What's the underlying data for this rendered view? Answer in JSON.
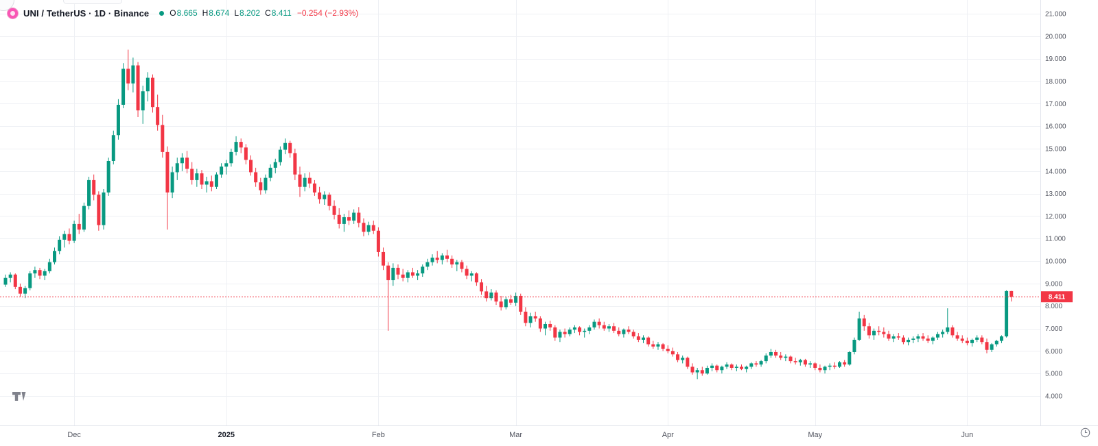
{
  "header": {
    "symbol_title": "UNI / TetherUS · 1D · Binance",
    "ohlc": {
      "open_letter": "O",
      "open": "8.665",
      "high_letter": "H",
      "high": "8.674",
      "low_letter": "L",
      "low": "8.202",
      "close_letter": "C",
      "close": "8.411",
      "change": "−0.254 (−2.93%)"
    }
  },
  "colors": {
    "up": "#089981",
    "down": "#f23645",
    "grid": "#eef0f4",
    "axis_border": "#e0e3eb",
    "axis_text": "#50535e",
    "text": "#131722",
    "muted": "#787b86",
    "logo_pink": "#f956b5",
    "badge_text": "#ffffff"
  },
  "chart_data": {
    "type": "candlestick",
    "title": "UNI / TetherUS · 1D · Binance",
    "exchange": "Binance",
    "interval": "1D",
    "last_price": 8.411,
    "last_candle": {
      "open": 8.665,
      "high": 8.674,
      "low": 8.202,
      "close": 8.411,
      "change": -0.254,
      "change_pct": -2.93
    },
    "price_axis": {
      "min": 4,
      "max": 21,
      "step": 1,
      "labels": [
        "21.000",
        "20.000",
        "19.000",
        "18.000",
        "17.000",
        "16.000",
        "15.000",
        "14.000",
        "13.000",
        "12.000",
        "11.000",
        "10.000",
        "9.000",
        "8.000",
        "7.000",
        "6.000",
        "5.000",
        "4.000"
      ],
      "last_price_label": "8.411"
    },
    "time_axis": {
      "ticks": [
        {
          "label": "Dec",
          "index": 14
        },
        {
          "label": "2025",
          "index": 45,
          "bold": true
        },
        {
          "label": "Feb",
          "index": 76
        },
        {
          "label": "Mar",
          "index": 104
        },
        {
          "label": "Apr",
          "index": 135
        },
        {
          "label": "May",
          "index": 165
        },
        {
          "label": "Jun",
          "index": 196
        }
      ]
    },
    "candles": [
      [
        8.95,
        9.4,
        8.85,
        9.25
      ],
      [
        9.25,
        9.5,
        9.05,
        9.4
      ],
      [
        9.4,
        9.45,
        8.75,
        8.85
      ],
      [
        8.85,
        9.0,
        8.4,
        8.55
      ],
      [
        8.55,
        8.9,
        8.35,
        8.8
      ],
      [
        8.8,
        9.55,
        8.7,
        9.45
      ],
      [
        9.45,
        9.75,
        9.25,
        9.6
      ],
      [
        9.6,
        9.7,
        9.2,
        9.35
      ],
      [
        9.35,
        9.65,
        9.15,
        9.55
      ],
      [
        9.55,
        10.1,
        9.45,
        9.95
      ],
      [
        9.95,
        10.6,
        9.85,
        10.45
      ],
      [
        10.45,
        11.1,
        10.3,
        10.95
      ],
      [
        10.95,
        11.35,
        10.6,
        11.2
      ],
      [
        11.2,
        11.45,
        10.75,
        10.9
      ],
      [
        10.9,
        11.8,
        10.8,
        11.65
      ],
      [
        11.65,
        12.1,
        11.2,
        11.4
      ],
      [
        11.4,
        12.6,
        11.3,
        12.45
      ],
      [
        12.45,
        13.75,
        12.3,
        13.6
      ],
      [
        13.6,
        13.85,
        12.7,
        12.95
      ],
      [
        12.95,
        13.1,
        11.35,
        11.6
      ],
      [
        11.6,
        13.2,
        11.4,
        13.05
      ],
      [
        13.05,
        14.6,
        12.9,
        14.45
      ],
      [
        14.45,
        15.8,
        14.3,
        15.6
      ],
      [
        15.6,
        17.2,
        15.4,
        16.95
      ],
      [
        16.95,
        18.8,
        16.8,
        18.55
      ],
      [
        18.55,
        19.4,
        17.6,
        17.9
      ],
      [
        17.9,
        19.05,
        17.5,
        18.7
      ],
      [
        18.7,
        18.85,
        16.4,
        16.7
      ],
      [
        16.7,
        17.8,
        16.1,
        17.55
      ],
      [
        17.55,
        18.4,
        17.1,
        18.15
      ],
      [
        18.15,
        18.3,
        16.6,
        16.85
      ],
      [
        16.85,
        17.4,
        15.8,
        16.05
      ],
      [
        16.05,
        16.5,
        14.6,
        14.85
      ],
      [
        14.85,
        15.1,
        11.4,
        13.05
      ],
      [
        13.05,
        14.2,
        12.8,
        13.95
      ],
      [
        13.95,
        14.6,
        13.6,
        14.35
      ],
      [
        14.35,
        14.8,
        14.0,
        14.6
      ],
      [
        14.6,
        14.9,
        13.9,
        14.1
      ],
      [
        14.1,
        14.4,
        13.4,
        13.6
      ],
      [
        13.6,
        14.1,
        13.3,
        13.9
      ],
      [
        13.9,
        14.05,
        13.2,
        13.4
      ],
      [
        13.4,
        13.75,
        13.05,
        13.55
      ],
      [
        13.55,
        13.8,
        13.1,
        13.3
      ],
      [
        13.3,
        13.95,
        13.2,
        13.85
      ],
      [
        13.85,
        14.35,
        13.7,
        14.2
      ],
      [
        14.2,
        14.5,
        13.85,
        14.35
      ],
      [
        14.35,
        15.0,
        14.2,
        14.85
      ],
      [
        14.85,
        15.55,
        14.7,
        15.3
      ],
      [
        15.3,
        15.45,
        14.8,
        15.05
      ],
      [
        15.05,
        15.2,
        14.3,
        14.5
      ],
      [
        14.5,
        14.7,
        13.8,
        13.95
      ],
      [
        13.95,
        14.15,
        13.3,
        13.5
      ],
      [
        13.5,
        13.7,
        12.95,
        13.15
      ],
      [
        13.15,
        13.85,
        13.0,
        13.7
      ],
      [
        13.7,
        14.3,
        13.55,
        14.15
      ],
      [
        14.15,
        14.55,
        13.9,
        14.4
      ],
      [
        14.4,
        15.1,
        14.25,
        14.95
      ],
      [
        14.95,
        15.45,
        14.75,
        15.25
      ],
      [
        15.25,
        15.35,
        14.6,
        14.8
      ],
      [
        14.8,
        15.0,
        13.6,
        13.85
      ],
      [
        13.85,
        14.2,
        12.85,
        13.3
      ],
      [
        13.3,
        13.9,
        13.1,
        13.7
      ],
      [
        13.7,
        13.95,
        13.25,
        13.45
      ],
      [
        13.45,
        13.6,
        12.9,
        13.05
      ],
      [
        13.05,
        13.3,
        12.55,
        12.75
      ],
      [
        12.75,
        13.1,
        12.5,
        12.95
      ],
      [
        12.95,
        13.05,
        12.25,
        12.45
      ],
      [
        12.45,
        12.7,
        11.85,
        12.05
      ],
      [
        12.05,
        12.35,
        11.45,
        11.65
      ],
      [
        11.65,
        12.1,
        11.3,
        11.95
      ],
      [
        11.95,
        12.25,
        11.6,
        11.8
      ],
      [
        11.8,
        12.3,
        11.65,
        12.15
      ],
      [
        12.15,
        12.4,
        11.5,
        11.7
      ],
      [
        11.7,
        11.9,
        11.1,
        11.3
      ],
      [
        11.3,
        11.75,
        11.15,
        11.6
      ],
      [
        11.6,
        11.8,
        11.2,
        11.35
      ],
      [
        11.35,
        11.5,
        10.2,
        10.4
      ],
      [
        10.4,
        10.6,
        9.6,
        9.8
      ],
      [
        9.8,
        9.95,
        6.9,
        9.15
      ],
      [
        9.15,
        9.9,
        8.9,
        9.7
      ],
      [
        9.7,
        9.85,
        9.2,
        9.4
      ],
      [
        9.4,
        9.65,
        9.1,
        9.25
      ],
      [
        9.25,
        9.6,
        9.05,
        9.5
      ],
      [
        9.5,
        9.7,
        9.25,
        9.35
      ],
      [
        9.35,
        9.6,
        9.15,
        9.45
      ],
      [
        9.45,
        9.85,
        9.3,
        9.75
      ],
      [
        9.75,
        10.1,
        9.6,
        9.95
      ],
      [
        9.95,
        10.3,
        9.8,
        10.15
      ],
      [
        10.15,
        10.45,
        9.9,
        10.05
      ],
      [
        10.05,
        10.35,
        9.85,
        10.25
      ],
      [
        10.25,
        10.5,
        9.95,
        10.1
      ],
      [
        10.1,
        10.25,
        9.7,
        9.85
      ],
      [
        9.85,
        10.05,
        9.55,
        9.95
      ],
      [
        9.95,
        10.05,
        9.5,
        9.65
      ],
      [
        9.65,
        9.8,
        9.2,
        9.35
      ],
      [
        9.35,
        9.55,
        9.1,
        9.45
      ],
      [
        9.45,
        9.5,
        8.9,
        9.05
      ],
      [
        9.05,
        9.2,
        8.5,
        8.65
      ],
      [
        8.65,
        8.9,
        8.2,
        8.35
      ],
      [
        8.35,
        8.75,
        8.25,
        8.6
      ],
      [
        8.6,
        8.7,
        8.05,
        8.2
      ],
      [
        8.2,
        8.45,
        7.8,
        7.95
      ],
      [
        7.95,
        8.4,
        7.85,
        8.3
      ],
      [
        8.3,
        8.5,
        8.05,
        8.15
      ],
      [
        8.15,
        8.6,
        8.0,
        8.45
      ],
      [
        8.45,
        8.55,
        7.6,
        7.75
      ],
      [
        7.75,
        7.95,
        7.1,
        7.25
      ],
      [
        7.25,
        7.7,
        7.05,
        7.55
      ],
      [
        7.55,
        7.75,
        7.3,
        7.45
      ],
      [
        7.45,
        7.55,
        6.85,
        7.0
      ],
      [
        7.0,
        7.3,
        6.7,
        7.2
      ],
      [
        7.2,
        7.35,
        6.9,
        7.05
      ],
      [
        7.05,
        7.15,
        6.45,
        6.6
      ],
      [
        6.6,
        6.95,
        6.4,
        6.85
      ],
      [
        6.85,
        7.0,
        6.6,
        6.75
      ],
      [
        6.75,
        7.05,
        6.65,
        6.95
      ],
      [
        6.95,
        7.15,
        6.8,
        7.05
      ],
      [
        7.05,
        7.1,
        6.7,
        6.85
      ],
      [
        6.85,
        7.0,
        6.6,
        6.9
      ],
      [
        6.9,
        7.15,
        6.75,
        7.05
      ],
      [
        7.05,
        7.4,
        6.95,
        7.3
      ],
      [
        7.3,
        7.45,
        7.0,
        7.15
      ],
      [
        7.15,
        7.3,
        6.9,
        7.0
      ],
      [
        7.0,
        7.2,
        6.85,
        7.1
      ],
      [
        7.1,
        7.25,
        6.8,
        6.9
      ],
      [
        6.9,
        7.05,
        6.65,
        6.75
      ],
      [
        6.75,
        7.0,
        6.6,
        6.95
      ],
      [
        6.95,
        7.1,
        6.75,
        6.85
      ],
      [
        6.85,
        6.95,
        6.55,
        6.65
      ],
      [
        6.65,
        6.8,
        6.4,
        6.5
      ],
      [
        6.5,
        6.7,
        6.35,
        6.6
      ],
      [
        6.6,
        6.65,
        6.2,
        6.3
      ],
      [
        6.3,
        6.45,
        6.1,
        6.2
      ],
      [
        6.2,
        6.4,
        6.05,
        6.3
      ],
      [
        6.3,
        6.35,
        6.0,
        6.1
      ],
      [
        6.1,
        6.25,
        5.9,
        6.0
      ],
      [
        6.0,
        6.15,
        5.75,
        5.85
      ],
      [
        5.85,
        5.95,
        5.5,
        5.6
      ],
      [
        5.6,
        5.8,
        5.45,
        5.7
      ],
      [
        5.7,
        5.75,
        5.2,
        5.3
      ],
      [
        5.3,
        5.45,
        4.95,
        5.05
      ],
      [
        5.05,
        5.25,
        4.75,
        5.15
      ],
      [
        5.15,
        5.3,
        4.9,
        5.0
      ],
      [
        5.0,
        5.35,
        4.95,
        5.25
      ],
      [
        5.25,
        5.45,
        5.1,
        5.35
      ],
      [
        5.35,
        5.4,
        5.05,
        5.15
      ],
      [
        5.15,
        5.35,
        5.0,
        5.3
      ],
      [
        5.3,
        5.5,
        5.2,
        5.4
      ],
      [
        5.4,
        5.45,
        5.15,
        5.25
      ],
      [
        5.25,
        5.4,
        5.1,
        5.3
      ],
      [
        5.3,
        5.4,
        5.15,
        5.2
      ],
      [
        5.2,
        5.35,
        5.05,
        5.3
      ],
      [
        5.3,
        5.5,
        5.2,
        5.45
      ],
      [
        5.45,
        5.55,
        5.3,
        5.4
      ],
      [
        5.4,
        5.6,
        5.3,
        5.55
      ],
      [
        5.55,
        5.9,
        5.45,
        5.8
      ],
      [
        5.8,
        6.1,
        5.7,
        5.95
      ],
      [
        5.95,
        6.05,
        5.7,
        5.8
      ],
      [
        5.8,
        5.95,
        5.6,
        5.7
      ],
      [
        5.7,
        5.85,
        5.55,
        5.75
      ],
      [
        5.75,
        5.8,
        5.45,
        5.55
      ],
      [
        5.55,
        5.7,
        5.4,
        5.5
      ],
      [
        5.5,
        5.65,
        5.35,
        5.6
      ],
      [
        5.6,
        5.65,
        5.3,
        5.4
      ],
      [
        5.4,
        5.55,
        5.25,
        5.45
      ],
      [
        5.45,
        5.5,
        5.15,
        5.25
      ],
      [
        5.25,
        5.4,
        5.05,
        5.15
      ],
      [
        5.15,
        5.35,
        5.0,
        5.3
      ],
      [
        5.3,
        5.45,
        5.15,
        5.35
      ],
      [
        5.35,
        5.5,
        5.2,
        5.3
      ],
      [
        5.3,
        5.55,
        5.25,
        5.5
      ],
      [
        5.5,
        5.6,
        5.3,
        5.4
      ],
      [
        5.4,
        6.0,
        5.35,
        5.95
      ],
      [
        5.95,
        6.6,
        5.85,
        6.5
      ],
      [
        6.5,
        7.75,
        6.45,
        7.45
      ],
      [
        7.45,
        7.6,
        6.9,
        7.1
      ],
      [
        7.1,
        7.25,
        6.55,
        6.7
      ],
      [
        6.7,
        7.0,
        6.5,
        6.9
      ],
      [
        6.9,
        7.1,
        6.7,
        6.85
      ],
      [
        6.85,
        7.05,
        6.6,
        6.75
      ],
      [
        6.75,
        6.9,
        6.45,
        6.55
      ],
      [
        6.55,
        6.75,
        6.4,
        6.65
      ],
      [
        6.65,
        6.8,
        6.5,
        6.6
      ],
      [
        6.6,
        6.7,
        6.3,
        6.4
      ],
      [
        6.4,
        6.6,
        6.25,
        6.5
      ],
      [
        6.5,
        6.65,
        6.35,
        6.55
      ],
      [
        6.55,
        6.75,
        6.4,
        6.65
      ],
      [
        6.65,
        6.8,
        6.45,
        6.55
      ],
      [
        6.55,
        6.7,
        6.35,
        6.45
      ],
      [
        6.45,
        6.65,
        6.3,
        6.6
      ],
      [
        6.6,
        6.85,
        6.5,
        6.75
      ],
      [
        6.75,
        6.95,
        6.6,
        6.85
      ],
      [
        6.85,
        7.9,
        6.75,
        7.05
      ],
      [
        7.05,
        7.15,
        6.6,
        6.7
      ],
      [
        6.7,
        6.85,
        6.45,
        6.55
      ],
      [
        6.55,
        6.7,
        6.35,
        6.45
      ],
      [
        6.45,
        6.6,
        6.25,
        6.35
      ],
      [
        6.35,
        6.55,
        6.2,
        6.5
      ],
      [
        6.5,
        6.7,
        6.4,
        6.6
      ],
      [
        6.6,
        6.7,
        6.3,
        6.4
      ],
      [
        6.4,
        6.55,
        5.9,
        6.05
      ],
      [
        6.05,
        6.35,
        5.95,
        6.3
      ],
      [
        6.3,
        6.5,
        6.2,
        6.45
      ],
      [
        6.45,
        6.7,
        6.35,
        6.65
      ],
      [
        6.65,
        8.7,
        6.6,
        8.665
      ],
      [
        8.665,
        8.674,
        8.202,
        8.411
      ]
    ]
  }
}
